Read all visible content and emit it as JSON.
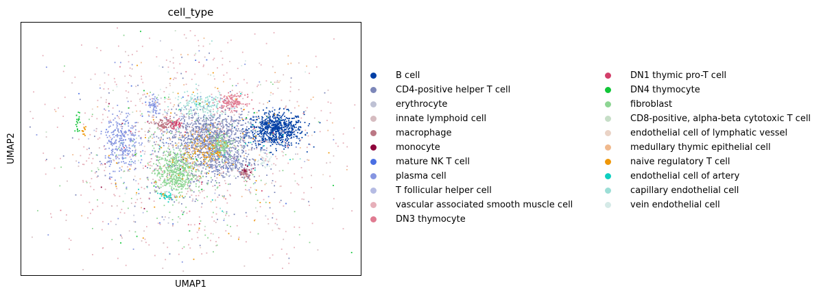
{
  "chart_data": {
    "type": "scatter",
    "title": "cell_type",
    "xlabel": "UMAP1",
    "ylabel": "UMAP2",
    "grid": false,
    "ticks": false,
    "legend_placement": "right",
    "series": [
      {
        "name": "B cell",
        "color": "#023fa5"
      },
      {
        "name": "CD4-positive helper T cell",
        "color": "#7d87b9"
      },
      {
        "name": "erythrocyte",
        "color": "#bec1d4"
      },
      {
        "name": "innate lymphoid cell",
        "color": "#d6bcc0"
      },
      {
        "name": "macrophage",
        "color": "#bb7784"
      },
      {
        "name": "monocyte",
        "color": "#8e063b"
      },
      {
        "name": "mature NK T cell",
        "color": "#4a6fe3"
      },
      {
        "name": "plasma cell",
        "color": "#8595e1"
      },
      {
        "name": "T follicular helper cell",
        "color": "#b5bbe3"
      },
      {
        "name": "vascular associated smooth muscle cell",
        "color": "#e6afb9"
      },
      {
        "name": "DN3 thymocyte",
        "color": "#e07b91"
      },
      {
        "name": "DN1 thymic pro-T cell",
        "color": "#d33f6a"
      },
      {
        "name": "DN4 thymocyte",
        "color": "#11c638"
      },
      {
        "name": "fibroblast",
        "color": "#8dd593"
      },
      {
        "name": "CD8-positive, alpha-beta cytotoxic T cell",
        "color": "#c6dec7"
      },
      {
        "name": "endothelial cell of lymphatic vessel",
        "color": "#ead3c6"
      },
      {
        "name": "medullary thymic epithelial cell",
        "color": "#f0b98d"
      },
      {
        "name": "naive regulatory T cell",
        "color": "#ef9708"
      },
      {
        "name": "endothelial cell of artery",
        "color": "#0fcfc0"
      },
      {
        "name": "capillary endothelial cell",
        "color": "#9cded6"
      },
      {
        "name": "vein endothelial cell",
        "color": "#d5eae7"
      }
    ],
    "clusters": [
      {
        "series": "B cell",
        "cx": 0.75,
        "cy": 0.58,
        "sx": 0.042,
        "sy": 0.035,
        "n": 700
      },
      {
        "series": "CD4-positive helper T cell",
        "cx": 0.55,
        "cy": 0.55,
        "sx": 0.06,
        "sy": 0.05,
        "n": 900
      },
      {
        "series": "CD4-positive helper T cell",
        "cx": 0.6,
        "cy": 0.45,
        "sx": 0.05,
        "sy": 0.035,
        "n": 300
      },
      {
        "series": "fibroblast",
        "cx": 0.45,
        "cy": 0.41,
        "sx": 0.03,
        "sy": 0.045,
        "n": 500
      },
      {
        "series": "fibroblast",
        "cx": 0.59,
        "cy": 0.52,
        "sx": 0.015,
        "sy": 0.02,
        "n": 120
      },
      {
        "series": "plasma cell",
        "cx": 0.29,
        "cy": 0.53,
        "sx": 0.025,
        "sy": 0.06,
        "n": 280
      },
      {
        "series": "plasma cell",
        "cx": 0.39,
        "cy": 0.67,
        "sx": 0.01,
        "sy": 0.02,
        "n": 60
      },
      {
        "series": "capillary endothelial cell",
        "cx": 0.53,
        "cy": 0.68,
        "sx": 0.04,
        "sy": 0.025,
        "n": 150
      },
      {
        "series": "DN3 thymocyte",
        "cx": 0.62,
        "cy": 0.69,
        "sx": 0.02,
        "sy": 0.015,
        "n": 140
      },
      {
        "series": "macrophage",
        "cx": 0.42,
        "cy": 0.6,
        "sx": 0.02,
        "sy": 0.012,
        "n": 90
      },
      {
        "series": "DN1 thymic pro-T cell",
        "cx": 0.45,
        "cy": 0.6,
        "sx": 0.012,
        "sy": 0.01,
        "n": 40
      },
      {
        "series": "naive regulatory T cell",
        "cx": 0.54,
        "cy": 0.49,
        "sx": 0.035,
        "sy": 0.035,
        "n": 120
      },
      {
        "series": "monocyte",
        "cx": 0.66,
        "cy": 0.41,
        "sx": 0.006,
        "sy": 0.01,
        "n": 25
      },
      {
        "series": "macrophage",
        "cx": 0.66,
        "cy": 0.4,
        "sx": 0.01,
        "sy": 0.012,
        "n": 40
      },
      {
        "series": "endothelial cell of artery",
        "cx": 0.42,
        "cy": 0.31,
        "sx": 0.01,
        "sy": 0.01,
        "n": 30
      },
      {
        "series": "DN4 thymocyte",
        "cx": 0.16,
        "cy": 0.61,
        "sx": 0.004,
        "sy": 0.02,
        "n": 20
      },
      {
        "series": "naive regulatory T cell",
        "cx": 0.18,
        "cy": 0.58,
        "sx": 0.004,
        "sy": 0.01,
        "n": 12
      },
      {
        "series": "vein endothelial cell",
        "cx": 0.72,
        "cy": 0.45,
        "sx": 0.01,
        "sy": 0.015,
        "n": 30
      },
      {
        "series": "vascular associated smooth muscle cell",
        "cx": 0.5,
        "cy": 0.5,
        "sx": 0.24,
        "sy": 0.24,
        "n": 550
      },
      {
        "series": "innate lymphoid cell",
        "cx": 0.5,
        "cy": 0.5,
        "sx": 0.2,
        "sy": 0.2,
        "n": 200
      },
      {
        "series": "fibroblast",
        "cx": 0.5,
        "cy": 0.45,
        "sx": 0.18,
        "sy": 0.18,
        "n": 150
      },
      {
        "series": "CD4-positive helper T cell",
        "cx": 0.5,
        "cy": 0.45,
        "sx": 0.16,
        "sy": 0.16,
        "n": 150
      },
      {
        "series": "naive regulatory T cell",
        "cx": 0.5,
        "cy": 0.5,
        "sx": 0.15,
        "sy": 0.18,
        "n": 60
      },
      {
        "series": "medullary thymic epithelial cell",
        "cx": 0.55,
        "cy": 0.55,
        "sx": 0.18,
        "sy": 0.16,
        "n": 80
      },
      {
        "series": "CD8-positive, alpha-beta cytotoxic T cell",
        "cx": 0.5,
        "cy": 0.5,
        "sx": 0.17,
        "sy": 0.17,
        "n": 60
      },
      {
        "series": "plasma cell",
        "cx": 0.5,
        "cy": 0.5,
        "sx": 0.2,
        "sy": 0.2,
        "n": 70
      },
      {
        "series": "vein endothelial cell",
        "cx": 0.55,
        "cy": 0.6,
        "sx": 0.15,
        "sy": 0.15,
        "n": 40
      },
      {
        "series": "endothelial cell of artery",
        "cx": 0.5,
        "cy": 0.5,
        "sx": 0.15,
        "sy": 0.15,
        "n": 20
      },
      {
        "series": "DN4 thymocyte",
        "cx": 0.5,
        "cy": 0.5,
        "sx": 0.2,
        "sy": 0.2,
        "n": 20
      },
      {
        "series": "mature NK T cell",
        "cx": 0.5,
        "cy": 0.5,
        "sx": 0.15,
        "sy": 0.15,
        "n": 20
      },
      {
        "series": "erythrocyte",
        "cx": 0.5,
        "cy": 0.5,
        "sx": 0.2,
        "sy": 0.2,
        "n": 25
      },
      {
        "series": "endothelial cell of lymphatic vessel",
        "cx": 0.5,
        "cy": 0.5,
        "sx": 0.18,
        "sy": 0.18,
        "n": 25
      },
      {
        "series": "T follicular helper cell",
        "cx": 0.5,
        "cy": 0.5,
        "sx": 0.15,
        "sy": 0.15,
        "n": 25
      },
      {
        "series": "DN3 thymocyte",
        "cx": 0.5,
        "cy": 0.5,
        "sx": 0.2,
        "sy": 0.2,
        "n": 25
      },
      {
        "series": "capillary endothelial cell",
        "cx": 0.5,
        "cy": 0.55,
        "sx": 0.15,
        "sy": 0.15,
        "n": 25
      },
      {
        "series": "monocyte",
        "cx": 0.5,
        "cy": 0.5,
        "sx": 0.15,
        "sy": 0.15,
        "n": 8
      },
      {
        "series": "DN1 thymic pro-T cell",
        "cx": 0.5,
        "cy": 0.5,
        "sx": 0.15,
        "sy": 0.15,
        "n": 12
      }
    ]
  }
}
